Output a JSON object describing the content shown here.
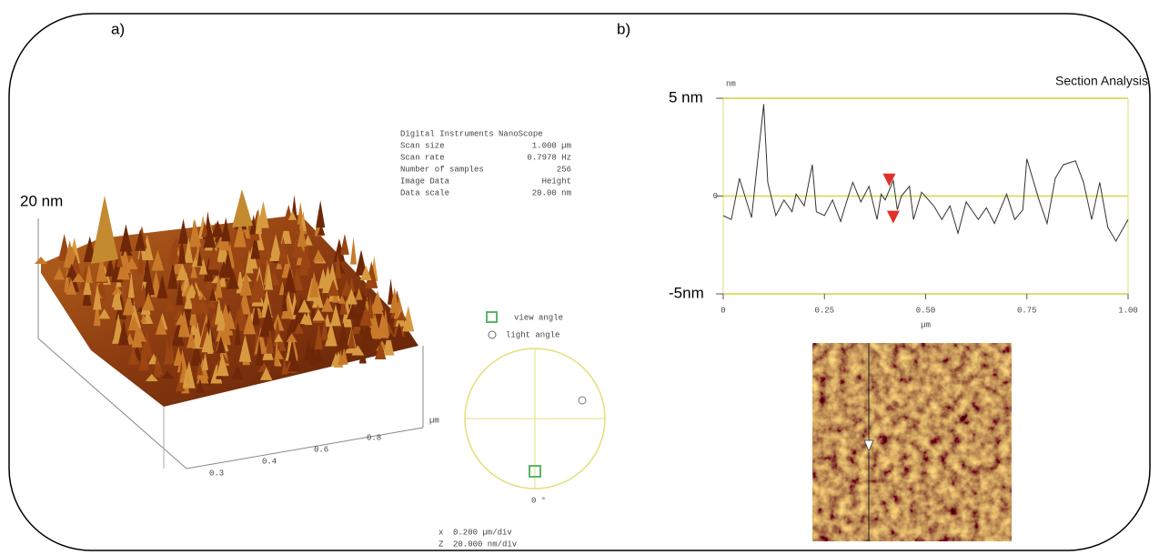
{
  "panel_a": {
    "label": "a)",
    "z_label": "20 nm",
    "info_title": "Digital Instruments NanoScope",
    "info": [
      [
        "Scan size",
        "1.000 µm"
      ],
      [
        "Scan rate",
        "0.7978 Hz"
      ],
      [
        "Number of samples",
        "256"
      ],
      [
        "Image Data",
        "Height"
      ],
      [
        "Data scale",
        "20.00 nm"
      ]
    ],
    "axis_ticks": [
      "0.3",
      "0.4",
      "0.6",
      "0.8"
    ],
    "axis_unit": "µm",
    "view_angle": "view angle",
    "light_angle": "light angle",
    "angle_zero": "0 °",
    "scale": [
      [
        "x",
        "0.200 µm/div"
      ],
      [
        "Z",
        "20.000 nm/div"
      ]
    ]
  },
  "panel_b": {
    "label": "b)"
  },
  "chart_data": {
    "type": "line",
    "title": "Section Analysis",
    "y_unit": "nm",
    "xlabel": "µm",
    "x": [
      0,
      0.02,
      0.04,
      0.07,
      0.1,
      0.11,
      0.13,
      0.15,
      0.17,
      0.18,
      0.2,
      0.22,
      0.23,
      0.25,
      0.27,
      0.29,
      0.3,
      0.32,
      0.34,
      0.36,
      0.38,
      0.39,
      0.4,
      0.42,
      0.43,
      0.44,
      0.46,
      0.47,
      0.49,
      0.52,
      0.54,
      0.56,
      0.58,
      0.6,
      0.63,
      0.65,
      0.67,
      0.7,
      0.72,
      0.74,
      0.75,
      0.78,
      0.8,
      0.82,
      0.84,
      0.87,
      0.89,
      0.91,
      0.93,
      0.95,
      0.97,
      1.0
    ],
    "series": [
      {
        "color": "#333333",
        "values": [
          -1.0,
          -1.2,
          0.9,
          -1.1,
          4.7,
          0.7,
          -1.0,
          -0.2,
          -0.8,
          0.1,
          -0.5,
          1.6,
          -0.8,
          -1.0,
          -0.2,
          -1.3,
          -0.6,
          0.7,
          -0.3,
          0.5,
          -1.2,
          0.1,
          -0.2,
          0.8,
          -0.7,
          0.0,
          0.5,
          -1.2,
          0.2,
          -0.5,
          -1.2,
          -0.5,
          -1.9,
          -0.3,
          -1.2,
          -0.6,
          -1.4,
          0.1,
          -1.2,
          -0.7,
          1.9,
          -0.2,
          -1.4,
          0.9,
          1.6,
          1.8,
          0.7,
          -1.2,
          0.7,
          -1.6,
          -2.3,
          -1.2
        ]
      }
    ],
    "markers": {
      "x": [
        0.41,
        0.42
      ],
      "values": [
        0.5,
        -1.4
      ],
      "color": "#e0302a"
    },
    "xlim": [
      0,
      1
    ],
    "ylim": [
      -5,
      5
    ],
    "xticks": [
      0,
      0.25,
      {
        "value": 0.5,
        "label": "0.50"
      },
      0.75,
      {
        "value": 1,
        "label": "1.00"
      }
    ],
    "yticks": [
      {
        "value": -5,
        "label": "-5nm"
      },
      0,
      {
        "value": 5,
        "label": "5 nm"
      }
    ],
    "grid": true,
    "grid_color": "#d8e070"
  }
}
